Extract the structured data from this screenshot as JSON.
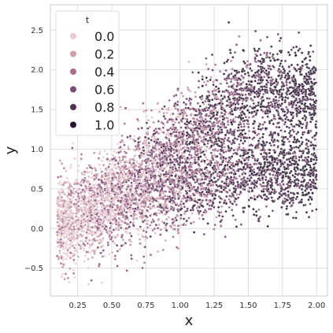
{
  "chart_data": {
    "type": "scatter",
    "xlabel": "x",
    "ylabel": "y",
    "xlim": [
      0.05,
      2.08
    ],
    "ylim": [
      -0.85,
      2.82
    ],
    "x_ticks": [
      "0.25",
      "0.50",
      "0.75",
      "1.00",
      "1.25",
      "1.50",
      "1.75",
      "2.00"
    ],
    "x_tick_values": [
      0.25,
      0.5,
      0.75,
      1.0,
      1.25,
      1.5,
      1.75,
      2.0
    ],
    "y_ticks": [
      "2.5",
      "2.0",
      "1.5",
      "1.0",
      "0.5",
      "0.0",
      "−0.5"
    ],
    "y_tick_values": [
      2.5,
      2.0,
      1.5,
      1.0,
      0.5,
      0.0,
      -0.5
    ],
    "grid": true,
    "legend": {
      "title": "t",
      "placement": "top-left",
      "entries": [
        {
          "label": "0.0",
          "value": 0.0,
          "color": "#e9cbd0"
        },
        {
          "label": "0.2",
          "value": 0.2,
          "color": "#cf9fab"
        },
        {
          "label": "0.4",
          "value": 0.4,
          "color": "#a86f8c"
        },
        {
          "label": "0.6",
          "value": 0.6,
          "color": "#7d4a73"
        },
        {
          "label": "0.8",
          "value": 0.8,
          "color": "#522e55"
        },
        {
          "label": "1.0",
          "value": 1.0,
          "color": "#27172e"
        }
      ]
    },
    "hue": "t",
    "hue_range": [
      0.0,
      1.0
    ],
    "x_range": [
      0.1,
      2.0
    ],
    "point_count": 6000,
    "bands": [
      {
        "name": "upper",
        "center_at_x_0.1": 0.05,
        "center_at_x_2.0": 1.7,
        "spread": 0.28
      },
      {
        "name": "lower",
        "center_at_x_0.1": 0.05,
        "center_at_x_2.0": 0.75,
        "spread": 0.25
      }
    ]
  }
}
